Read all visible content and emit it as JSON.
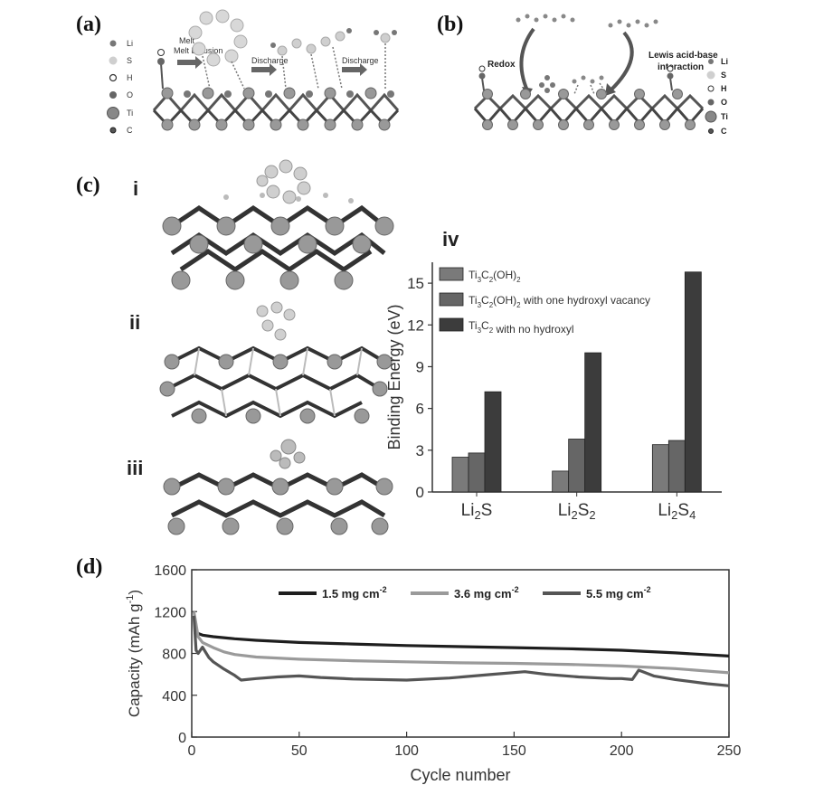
{
  "panels": {
    "a": {
      "label": "(a)",
      "legend": [
        "Li",
        "S",
        "H",
        "O",
        "Ti",
        "C"
      ],
      "arrows": [
        "Melt Diffusion",
        "Discharge",
        "Discharge"
      ]
    },
    "b": {
      "label": "(b)",
      "legend": [
        "Li",
        "S",
        "H",
        "O",
        "Ti",
        "C"
      ],
      "annotations": [
        "Redox",
        "Lewis acid-base interaction"
      ]
    },
    "c": {
      "label": "(c)",
      "structures": [
        "i",
        "ii",
        "iii"
      ],
      "chart_label": "iv"
    },
    "d": {
      "label": "(d)"
    }
  },
  "chart_data": [
    {
      "type": "bar",
      "panel": "iv",
      "ylabel": "Binding Energy (eV)",
      "ylim": [
        0,
        16.5
      ],
      "yticks": [
        0,
        3,
        6,
        9,
        12,
        15
      ],
      "categories": [
        {
          "base": "Li",
          "sub1": "2",
          "mid": "S",
          "sub2": ""
        },
        {
          "base": "Li",
          "sub1": "2",
          "mid": "S",
          "sub2": "2"
        },
        {
          "base": "Li",
          "sub1": "2",
          "mid": "S",
          "sub2": "4"
        }
      ],
      "series": [
        {
          "name": "Ti3C2(OH)2",
          "label_parts": [
            "Ti",
            "3",
            "C",
            "2",
            "(OH)",
            "2",
            ""
          ],
          "color": "#7a7a7a",
          "values": [
            2.5,
            1.5,
            3.4
          ]
        },
        {
          "name": "Ti3C2(OH)2 with one hydroxyl vacancy",
          "label_parts": [
            "Ti",
            "3",
            "C",
            "2",
            "(OH)",
            "2",
            " with one hydroxyl vacancy"
          ],
          "color": "#666666",
          "values": [
            2.8,
            3.8,
            3.7
          ]
        },
        {
          "name": "Ti3C2 with no hydroxyl",
          "label_parts": [
            "Ti",
            "3",
            "C",
            "2",
            "",
            "",
            " with no hydroxyl"
          ],
          "color": "#3c3c3c",
          "values": [
            7.2,
            10.0,
            15.8
          ]
        }
      ],
      "legend_placement": "top-left",
      "grid": false
    },
    {
      "type": "line",
      "panel": "d",
      "xlabel": "Cycle number",
      "ylabel_parts": [
        "Capacity (mAh g",
        "-1",
        ")"
      ],
      "xlim": [
        0,
        250
      ],
      "ylim": [
        0,
        1600
      ],
      "xticks": [
        0,
        50,
        100,
        150,
        200,
        250
      ],
      "yticks": [
        0,
        400,
        800,
        1200,
        1600
      ],
      "legend_placement": "top",
      "grid": false,
      "series": [
        {
          "name": "1.5 mg cm-2",
          "label_main": "1.5 mg cm",
          "label_sup": "-2",
          "color": "#1e1e1e",
          "x": [
            1,
            3,
            5,
            10,
            20,
            30,
            50,
            75,
            100,
            125,
            150,
            175,
            200,
            225,
            250
          ],
          "y": [
            1000,
            990,
            975,
            960,
            940,
            925,
            905,
            890,
            875,
            865,
            855,
            845,
            830,
            805,
            775
          ]
        },
        {
          "name": "3.6 mg cm-2",
          "label_main": "3.6 mg cm",
          "label_sup": "-2",
          "color": "#9a9a9a",
          "x": [
            1,
            3,
            5,
            10,
            15,
            20,
            30,
            50,
            75,
            100,
            125,
            150,
            175,
            200,
            225,
            250
          ],
          "y": [
            1200,
            960,
            905,
            855,
            815,
            790,
            765,
            745,
            730,
            720,
            710,
            705,
            695,
            680,
            655,
            615
          ]
        },
        {
          "name": "5.5 mg cm-2",
          "label_main": "5.5 mg cm",
          "label_sup": "-2",
          "color": "#555555",
          "x": [
            1,
            2,
            3,
            5,
            8,
            10,
            15,
            20,
            23,
            30,
            40,
            50,
            60,
            75,
            100,
            120,
            140,
            155,
            165,
            180,
            195,
            200,
            205,
            208,
            215,
            225,
            240,
            250
          ],
          "y": [
            1160,
            830,
            800,
            860,
            760,
            720,
            650,
            590,
            545,
            560,
            575,
            585,
            570,
            555,
            545,
            565,
            600,
            625,
            600,
            575,
            560,
            560,
            550,
            640,
            585,
            550,
            510,
            490
          ]
        }
      ]
    }
  ]
}
